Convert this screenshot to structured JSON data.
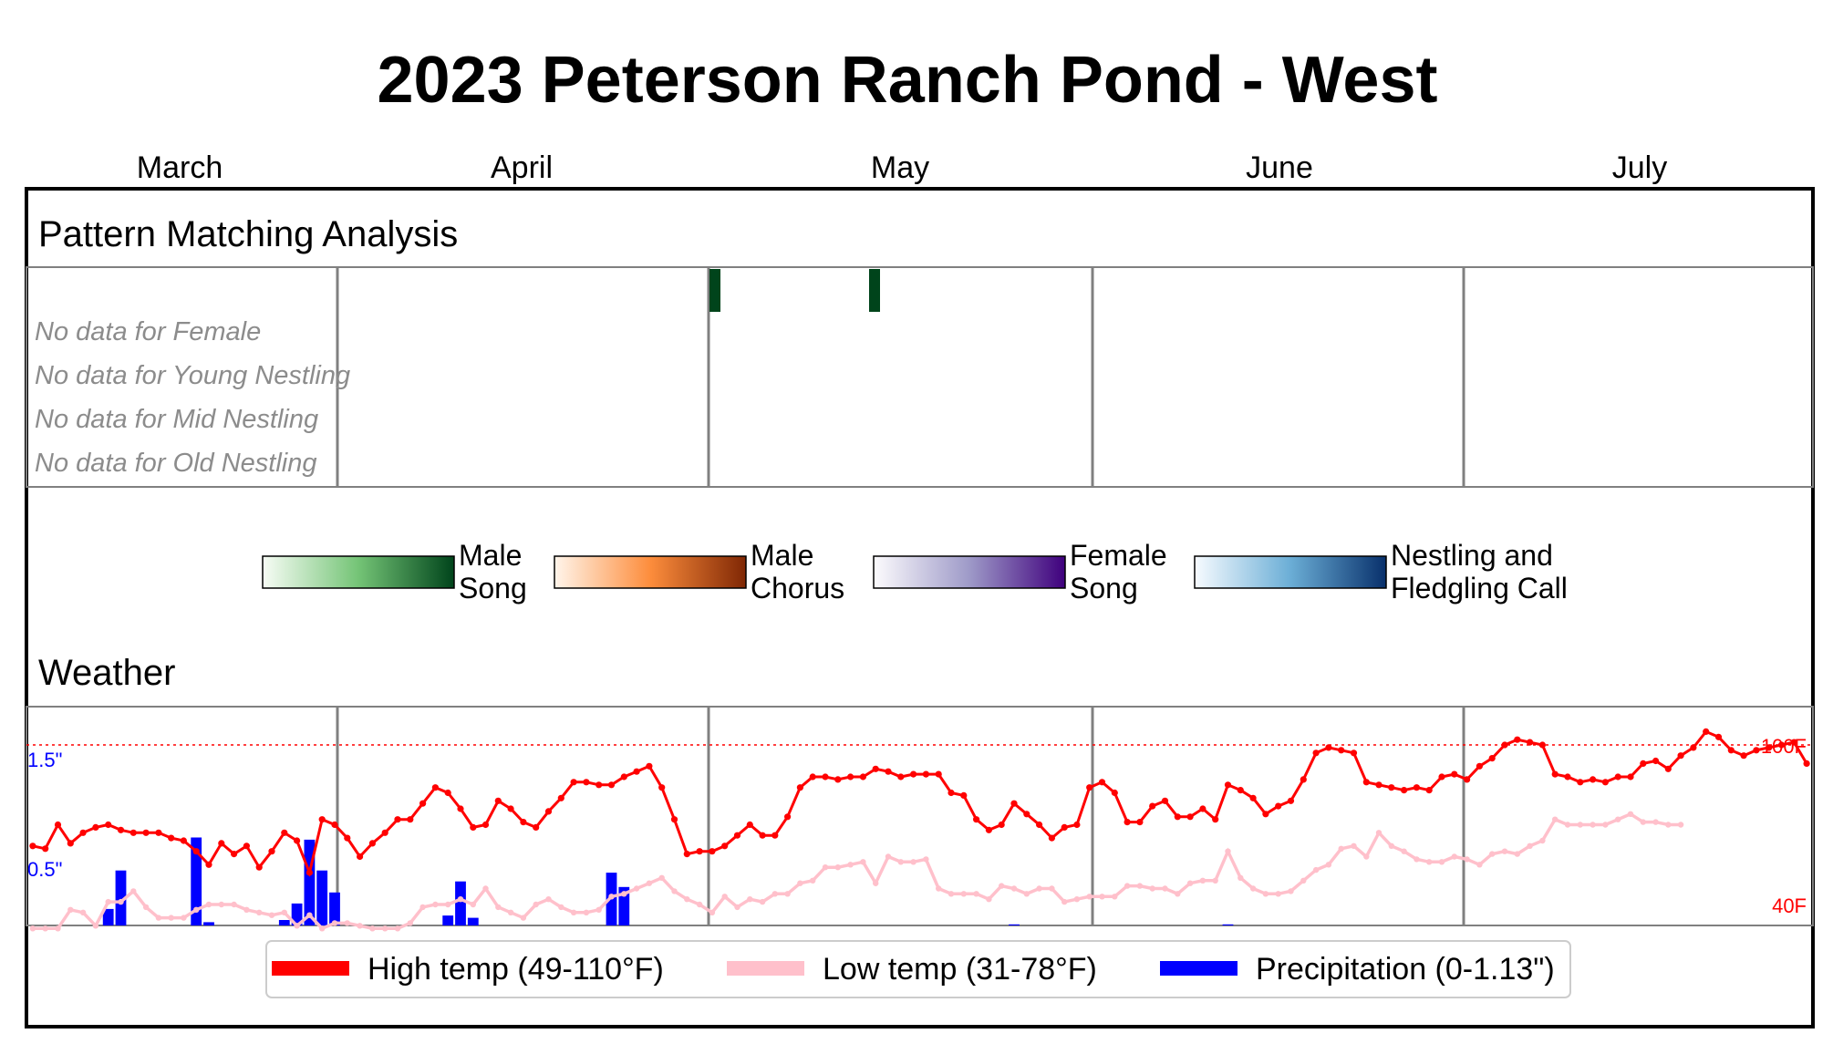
{
  "title": "2023 Peterson Ranch Pond - West",
  "months": [
    "March",
    "April",
    "May",
    "June",
    "July"
  ],
  "sections": {
    "pattern": "Pattern Matching Analysis",
    "weather": "Weather"
  },
  "no_data_labels": [
    "No data for Female",
    "No data for Young Nestling",
    "No data for Mid Nestling",
    "No data for Old Nestling"
  ],
  "colorbars": [
    {
      "label": [
        "Male",
        "Song"
      ],
      "from": "#f7fcf5",
      "mid": "#74c476",
      "to": "#00441b"
    },
    {
      "label": [
        "Male",
        "Chorus"
      ],
      "from": "#fff5eb",
      "mid": "#fd8d3c",
      "to": "#7f2704"
    },
    {
      "label": [
        "Female",
        "Song"
      ],
      "from": "#fcfbfd",
      "mid": "#9e9ac8",
      "to": "#3f007d"
    },
    {
      "label": [
        "Nestling and",
        "Fledgling Call"
      ],
      "from": "#f7fbff",
      "mid": "#6baed6",
      "to": "#08306b"
    }
  ],
  "weather_axis": {
    "precip_labels": [
      "1.5\"",
      "0.5\""
    ],
    "temp_labels": [
      "100F",
      "40F"
    ]
  },
  "weather_legend": [
    {
      "label": "High temp (49-110°F)",
      "color": "#ff0000"
    },
    {
      "label": "Low temp (31-78°F)",
      "color": "#ffc0cb"
    },
    {
      "label": "Precipitation (0-1.13\")",
      "color": "#0000ff"
    }
  ],
  "chart_data": [
    {
      "type": "heatmap",
      "title": "Pattern Matching Analysis",
      "series": [
        {
          "name": "Male Song",
          "detections": [
            {
              "date": "2023-04-30",
              "level": 1.0
            },
            {
              "date": "2023-05-13",
              "level": 1.0
            }
          ]
        }
      ],
      "no_data_rows": [
        "Female",
        "Young Nestling",
        "Mid Nestling",
        "Old Nestling"
      ]
    },
    {
      "type": "line",
      "title": "Weather",
      "x_start": "2023-03-01",
      "x_end": "2023-07-31",
      "colors": {
        "high": "#ff0000",
        "low": "#ffc0cb",
        "precip": "#0000ff"
      },
      "series": [
        {
          "name": "High temp (49-110°F)",
          "unit": "F",
          "values": [
            62,
            61,
            70,
            63,
            67,
            69,
            70,
            68,
            67,
            67,
            67,
            65,
            64,
            60,
            55,
            63,
            59,
            62,
            54,
            60,
            67,
            64,
            52,
            72,
            70,
            65,
            58,
            63,
            67,
            72,
            72,
            78,
            84,
            82,
            76,
            69,
            70,
            79,
            76,
            71,
            69,
            75,
            80,
            86,
            86,
            85,
            85,
            88,
            90,
            92,
            84,
            72,
            59,
            60,
            60,
            62,
            66,
            70,
            66,
            66,
            73,
            84,
            88,
            88,
            87,
            88,
            88,
            91,
            90,
            88,
            89,
            89,
            89,
            82,
            81,
            72,
            68,
            70,
            78,
            74,
            70,
            65,
            69,
            70,
            84,
            86,
            82,
            71,
            71,
            77,
            79,
            73,
            73,
            76,
            72,
            85,
            83,
            80,
            74,
            77,
            79,
            87,
            97,
            99,
            98,
            97,
            86,
            85,
            84,
            83,
            84,
            83,
            88,
            89,
            87,
            92,
            95,
            100,
            102,
            101,
            100,
            89,
            88,
            86,
            87,
            86,
            88,
            88,
            93,
            94,
            91,
            96,
            99,
            105,
            103,
            98,
            96,
            98,
            99,
            100,
            101,
            93
          ]
        },
        {
          "name": "Low temp (31-78°F)",
          "unit": "F",
          "values": [
            31,
            31,
            31,
            38,
            37,
            32,
            41,
            41,
            45,
            39,
            35,
            35,
            35,
            38,
            40,
            40,
            40,
            38,
            37,
            36,
            37,
            32,
            36,
            31,
            33,
            33,
            32,
            31,
            31,
            31,
            33,
            39,
            40,
            40,
            42,
            40,
            46,
            39,
            37,
            35,
            40,
            42,
            39,
            37,
            37,
            38,
            43,
            44,
            46,
            48,
            50,
            45,
            42,
            40,
            37,
            43,
            39,
            42,
            41,
            44,
            44,
            48,
            49,
            54,
            54,
            55,
            56,
            48,
            58,
            56,
            56,
            57,
            46,
            44,
            44,
            44,
            42,
            47,
            46,
            44,
            46,
            46,
            41,
            42,
            43,
            43,
            43,
            47,
            47,
            46,
            46,
            44,
            48,
            49,
            49,
            60,
            50,
            46,
            44,
            44,
            45,
            49,
            53,
            55,
            61,
            62,
            58,
            67,
            62,
            60,
            57,
            56,
            56,
            58,
            57,
            55,
            59,
            60,
            59,
            62,
            64,
            72,
            70,
            70,
            70,
            70,
            72,
            74,
            71,
            71,
            70,
            70
          ]
        },
        {
          "name": "Precipitation (0-1.13\")",
          "unit": "in",
          "type": "bar",
          "values": [
            [
              6,
              0.15
            ],
            [
              7,
              0.5
            ],
            [
              13,
              0.8
            ],
            [
              14,
              0.03
            ],
            [
              20,
              0.05
            ],
            [
              21,
              0.2
            ],
            [
              22,
              0.78
            ],
            [
              23,
              0.5
            ],
            [
              24,
              0.3
            ],
            [
              33,
              0.09
            ],
            [
              34,
              0.4
            ],
            [
              35,
              0.07
            ],
            [
              46,
              0.48
            ],
            [
              47,
              0.35
            ],
            [
              78,
              0.01
            ],
            [
              95,
              0.01
            ]
          ]
        }
      ]
    }
  ]
}
